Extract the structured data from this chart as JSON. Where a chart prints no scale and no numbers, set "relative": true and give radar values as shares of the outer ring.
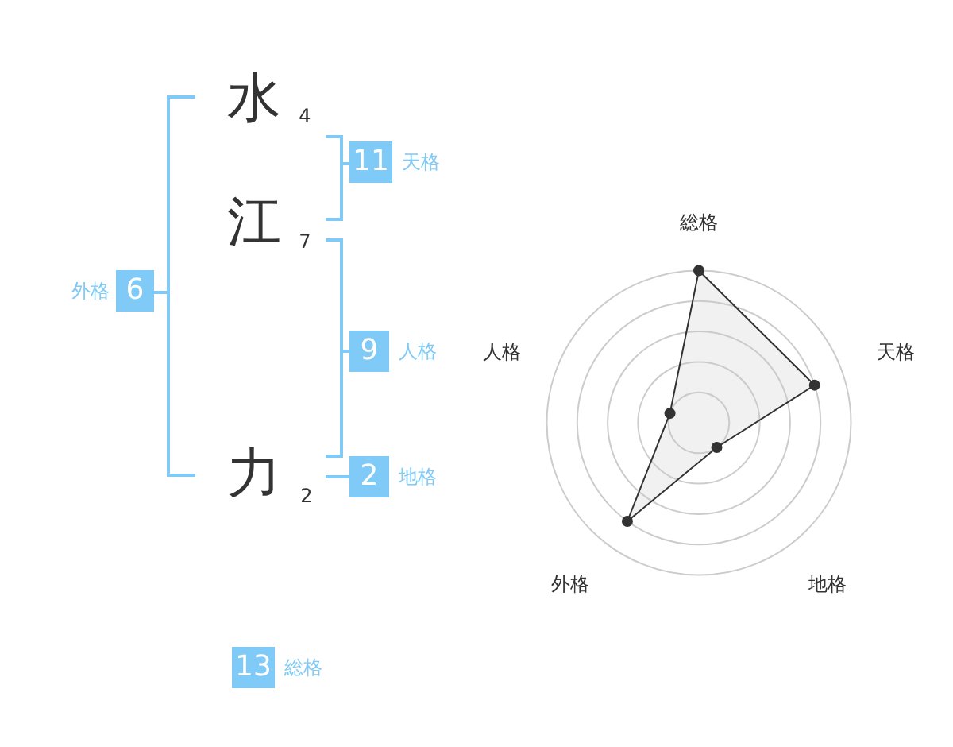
{
  "chart_data": [
    {
      "type": "other",
      "categories": [
        "水",
        "江",
        "力"
      ],
      "annotations": [
        "4",
        "7",
        "2",
        "11",
        "天格",
        "9",
        "人格",
        "2",
        "地格",
        "6",
        "外格",
        "13",
        "総格"
      ]
    },
    {
      "type": "radar",
      "categories": [
        "総格",
        "天格",
        "地格",
        "外格",
        "人格"
      ],
      "relative": true,
      "grid": true,
      "marker": "circle",
      "series": [
        {
          "color": "#333333",
          "values": [
            1,
            0.8,
            0.2,
            0.8,
            0.2
          ]
        }
      ]
    }
  ]
}
